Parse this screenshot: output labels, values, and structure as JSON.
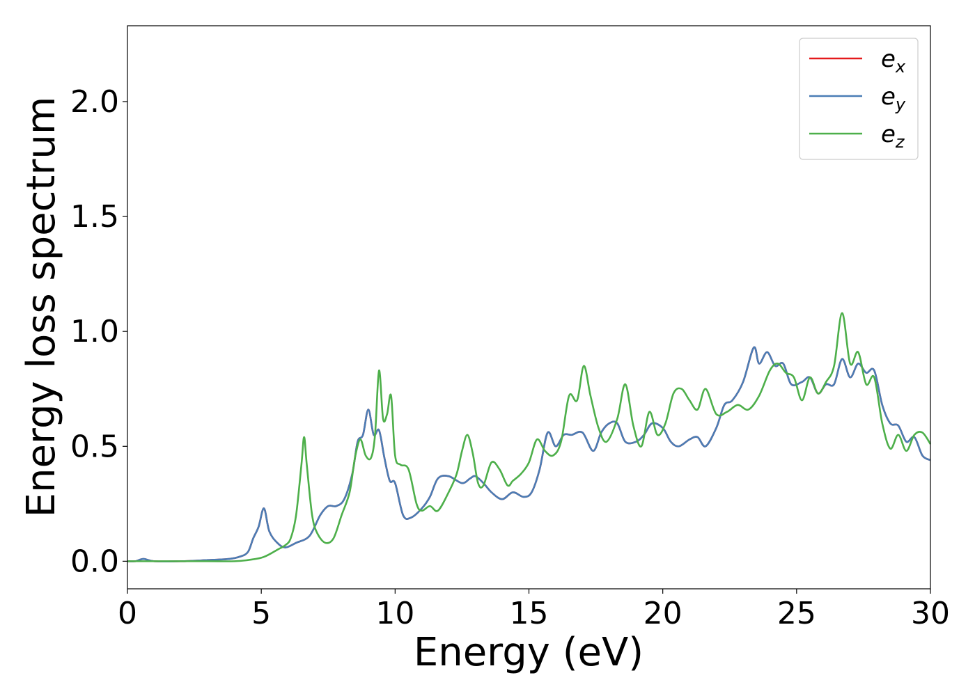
{
  "chart_data": {
    "type": "line",
    "title": "",
    "xlabel": "Energy (eV)",
    "ylabel": "Energy loss spectrum",
    "xlim": [
      0,
      30
    ],
    "ylim": [
      -0.12,
      2.33
    ],
    "xticks": [
      0,
      5,
      10,
      15,
      20,
      25,
      30
    ],
    "xtick_labels": [
      "0",
      "5",
      "10",
      "15",
      "20",
      "25",
      "30"
    ],
    "yticks": [
      0.0,
      0.5,
      1.0,
      1.5,
      2.0
    ],
    "ytick_labels": [
      "0.0",
      "0.5",
      "1.0",
      "1.5",
      "2.0"
    ],
    "grid": false,
    "legend_position": "top-right",
    "series": [
      {
        "name": "e_x",
        "legend_base": "e",
        "legend_sub": "x",
        "color": "#e41a1c",
        "x": [
          0,
          0.3,
          0.6,
          1.0,
          2.0,
          3.0,
          3.8,
          4.2,
          4.5,
          4.7,
          4.9,
          5.1,
          5.3,
          5.6,
          5.9,
          6.3,
          6.8,
          7.2,
          7.5,
          7.8,
          8.1,
          8.4,
          8.6,
          8.8,
          9.0,
          9.2,
          9.4,
          9.6,
          9.8,
          10.0,
          10.3,
          10.6,
          11.0,
          11.3,
          11.6,
          12.0,
          12.5,
          12.8,
          13.0,
          13.3,
          13.6,
          14.0,
          14.4,
          14.8,
          15.1,
          15.4,
          15.7,
          16.0,
          16.3,
          16.6,
          17.0,
          17.4,
          17.7,
          18.0,
          18.3,
          18.6,
          19.0,
          19.3,
          19.6,
          20.0,
          20.3,
          20.6,
          21.0,
          21.3,
          21.6,
          22.0,
          22.3,
          22.6,
          23.0,
          23.4,
          23.6,
          23.9,
          24.2,
          24.5,
          24.8,
          25.2,
          25.5,
          25.8,
          26.1,
          26.4,
          26.7,
          27.0,
          27.3,
          27.6,
          27.9,
          28.2,
          28.5,
          28.8,
          29.1,
          29.4,
          29.7,
          30.0
        ],
        "y": [
          0.0,
          0.0,
          0.01,
          0.0,
          0.0,
          0.005,
          0.01,
          0.02,
          0.04,
          0.1,
          0.15,
          0.23,
          0.13,
          0.08,
          0.06,
          0.08,
          0.11,
          0.2,
          0.24,
          0.24,
          0.27,
          0.38,
          0.52,
          0.55,
          0.66,
          0.55,
          0.57,
          0.45,
          0.35,
          0.34,
          0.2,
          0.19,
          0.23,
          0.28,
          0.36,
          0.37,
          0.34,
          0.36,
          0.37,
          0.34,
          0.3,
          0.27,
          0.3,
          0.28,
          0.3,
          0.4,
          0.56,
          0.5,
          0.55,
          0.55,
          0.56,
          0.48,
          0.56,
          0.6,
          0.6,
          0.52,
          0.52,
          0.55,
          0.6,
          0.58,
          0.52,
          0.5,
          0.53,
          0.54,
          0.5,
          0.58,
          0.68,
          0.7,
          0.78,
          0.93,
          0.86,
          0.91,
          0.85,
          0.86,
          0.77,
          0.78,
          0.8,
          0.73,
          0.77,
          0.77,
          0.88,
          0.8,
          0.86,
          0.82,
          0.83,
          0.68,
          0.6,
          0.59,
          0.52,
          0.54,
          0.46,
          0.44
        ]
      },
      {
        "name": "e_y",
        "legend_base": "e",
        "legend_sub": "y",
        "color": "#4a7db5",
        "x": [
          0,
          0.3,
          0.6,
          1.0,
          2.0,
          3.0,
          3.8,
          4.2,
          4.5,
          4.7,
          4.9,
          5.1,
          5.3,
          5.6,
          5.9,
          6.3,
          6.8,
          7.2,
          7.5,
          7.8,
          8.1,
          8.4,
          8.6,
          8.8,
          9.0,
          9.2,
          9.4,
          9.6,
          9.8,
          10.0,
          10.3,
          10.6,
          11.0,
          11.3,
          11.6,
          12.0,
          12.5,
          12.8,
          13.0,
          13.3,
          13.6,
          14.0,
          14.4,
          14.8,
          15.1,
          15.4,
          15.7,
          16.0,
          16.3,
          16.6,
          17.0,
          17.4,
          17.7,
          18.0,
          18.3,
          18.6,
          19.0,
          19.3,
          19.6,
          20.0,
          20.3,
          20.6,
          21.0,
          21.3,
          21.6,
          22.0,
          22.3,
          22.6,
          23.0,
          23.4,
          23.6,
          23.9,
          24.2,
          24.5,
          24.8,
          25.2,
          25.5,
          25.8,
          26.1,
          26.4,
          26.7,
          27.0,
          27.3,
          27.6,
          27.9,
          28.2,
          28.5,
          28.8,
          29.1,
          29.4,
          29.7,
          30.0
        ],
        "y": [
          0.0,
          0.0,
          0.01,
          0.0,
          0.0,
          0.005,
          0.01,
          0.02,
          0.04,
          0.1,
          0.15,
          0.23,
          0.13,
          0.08,
          0.06,
          0.08,
          0.11,
          0.2,
          0.24,
          0.24,
          0.27,
          0.38,
          0.52,
          0.55,
          0.66,
          0.55,
          0.57,
          0.45,
          0.35,
          0.34,
          0.2,
          0.19,
          0.23,
          0.28,
          0.36,
          0.37,
          0.34,
          0.36,
          0.37,
          0.34,
          0.3,
          0.27,
          0.3,
          0.28,
          0.3,
          0.4,
          0.56,
          0.5,
          0.55,
          0.55,
          0.56,
          0.48,
          0.56,
          0.6,
          0.6,
          0.52,
          0.52,
          0.55,
          0.6,
          0.58,
          0.52,
          0.5,
          0.53,
          0.54,
          0.5,
          0.58,
          0.68,
          0.7,
          0.78,
          0.93,
          0.86,
          0.91,
          0.85,
          0.86,
          0.77,
          0.78,
          0.8,
          0.73,
          0.77,
          0.77,
          0.88,
          0.8,
          0.86,
          0.82,
          0.83,
          0.68,
          0.6,
          0.59,
          0.52,
          0.54,
          0.46,
          0.44
        ]
      },
      {
        "name": "e_z",
        "legend_base": "e",
        "legend_sub": "z",
        "color": "#4daf4a",
        "x": [
          0,
          0.3,
          0.6,
          1.0,
          2.0,
          3.0,
          4.0,
          4.5,
          5.0,
          5.3,
          5.6,
          5.9,
          6.1,
          6.3,
          6.5,
          6.6,
          6.7,
          6.9,
          7.1,
          7.4,
          7.7,
          8.0,
          8.3,
          8.5,
          8.7,
          8.9,
          9.1,
          9.25,
          9.4,
          9.55,
          9.7,
          9.85,
          10.0,
          10.2,
          10.5,
          10.8,
          11.0,
          11.3,
          11.6,
          12.0,
          12.3,
          12.5,
          12.7,
          12.9,
          13.1,
          13.3,
          13.6,
          13.9,
          14.2,
          14.4,
          14.7,
          15.0,
          15.3,
          15.6,
          15.9,
          16.2,
          16.5,
          16.8,
          17.05,
          17.3,
          17.6,
          17.9,
          18.3,
          18.6,
          18.9,
          19.2,
          19.5,
          19.8,
          20.1,
          20.4,
          20.7,
          21.0,
          21.3,
          21.6,
          22.0,
          22.4,
          22.8,
          23.2,
          23.6,
          24.0,
          24.3,
          24.6,
          24.9,
          25.2,
          25.5,
          25.8,
          26.1,
          26.4,
          26.7,
          27.0,
          27.3,
          27.6,
          27.9,
          28.2,
          28.5,
          28.8,
          29.1,
          29.4,
          29.7,
          30.0
        ],
        "y": [
          0.0,
          0.0,
          0.0,
          0.0,
          0.0,
          0.0,
          0.0,
          0.005,
          0.015,
          0.03,
          0.05,
          0.07,
          0.1,
          0.2,
          0.42,
          0.54,
          0.42,
          0.2,
          0.12,
          0.08,
          0.1,
          0.2,
          0.3,
          0.45,
          0.53,
          0.46,
          0.45,
          0.55,
          0.83,
          0.62,
          0.64,
          0.72,
          0.46,
          0.42,
          0.4,
          0.25,
          0.22,
          0.24,
          0.22,
          0.3,
          0.38,
          0.48,
          0.55,
          0.47,
          0.34,
          0.33,
          0.43,
          0.4,
          0.33,
          0.35,
          0.38,
          0.43,
          0.53,
          0.48,
          0.46,
          0.52,
          0.72,
          0.7,
          0.85,
          0.72,
          0.58,
          0.52,
          0.62,
          0.77,
          0.59,
          0.5,
          0.65,
          0.55,
          0.6,
          0.73,
          0.75,
          0.7,
          0.66,
          0.75,
          0.64,
          0.65,
          0.68,
          0.66,
          0.72,
          0.83,
          0.86,
          0.82,
          0.8,
          0.7,
          0.8,
          0.73,
          0.78,
          0.85,
          1.08,
          0.86,
          0.91,
          0.77,
          0.8,
          0.6,
          0.49,
          0.55,
          0.48,
          0.55,
          0.56,
          0.51
        ]
      }
    ]
  }
}
